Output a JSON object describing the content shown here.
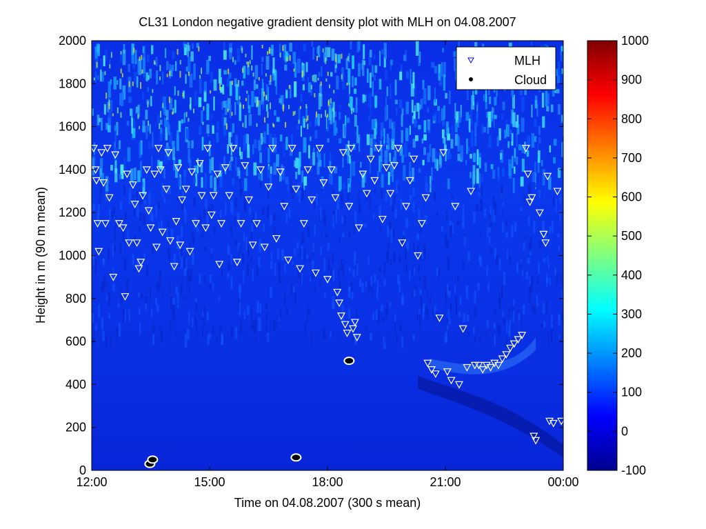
{
  "chart_data": {
    "type": "heatmap",
    "title": "CL31 London negative gradient density plot with MLH on 04.08.2007",
    "xlabel": "Time on 04.08.2007 (300 s mean)",
    "ylabel": "Height in m (90 m mean)",
    "x_ticks": [
      "12:00",
      "15:00",
      "18:00",
      "21:00",
      "00:00"
    ],
    "x_range_hours": [
      12,
      24
    ],
    "y_ticks": [
      0,
      200,
      400,
      600,
      800,
      1000,
      1200,
      1400,
      1600,
      1800,
      2000
    ],
    "ylim": [
      0,
      2000
    ],
    "colorbar": {
      "ticks": [
        -100,
        0,
        100,
        200,
        300,
        400,
        500,
        600,
        700,
        800,
        900,
        1000
      ],
      "range": [
        -100,
        1000
      ],
      "colormap": "jet"
    },
    "legend": {
      "position": "top-right",
      "entries": [
        {
          "label": "MLH",
          "marker": "triangle-down-open",
          "color": "#0000ff"
        },
        {
          "label": "Cloud",
          "marker": "dot",
          "color": "#000000"
        }
      ]
    },
    "series": [
      {
        "name": "MLH",
        "marker": "triangle-down-open",
        "points": [
          [
            12.05,
            1500
          ],
          [
            12.1,
            1400
          ],
          [
            12.12,
            1350
          ],
          [
            12.15,
            1150
          ],
          [
            12.18,
            1020
          ],
          [
            12.25,
            1480
          ],
          [
            12.3,
            1340
          ],
          [
            12.35,
            1150
          ],
          [
            12.4,
            1500
          ],
          [
            12.45,
            1270
          ],
          [
            12.55,
            900
          ],
          [
            12.6,
            1470
          ],
          [
            12.7,
            1150
          ],
          [
            12.8,
            1130
          ],
          [
            12.85,
            810
          ],
          [
            12.9,
            1380
          ],
          [
            12.95,
            1060
          ],
          [
            13.05,
            1330
          ],
          [
            13.1,
            1240
          ],
          [
            13.15,
            1060
          ],
          [
            13.2,
            940
          ],
          [
            13.25,
            970
          ],
          [
            13.3,
            1280
          ],
          [
            13.4,
            1400
          ],
          [
            13.45,
            1210
          ],
          [
            13.5,
            1130
          ],
          [
            13.6,
            1380
          ],
          [
            13.65,
            1040
          ],
          [
            13.7,
            1500
          ],
          [
            13.75,
            1400
          ],
          [
            13.8,
            1110
          ],
          [
            13.9,
            1310
          ],
          [
            13.95,
            1480
          ],
          [
            14.0,
            1070
          ],
          [
            14.1,
            950
          ],
          [
            14.15,
            1160
          ],
          [
            14.2,
            1410
          ],
          [
            14.25,
            1050
          ],
          [
            14.3,
            1260
          ],
          [
            14.4,
            1310
          ],
          [
            14.5,
            1020
          ],
          [
            14.55,
            1390
          ],
          [
            14.65,
            1150
          ],
          [
            14.75,
            1430
          ],
          [
            14.8,
            1280
          ],
          [
            14.9,
            1130
          ],
          [
            14.95,
            1500
          ],
          [
            15.05,
            1190
          ],
          [
            15.1,
            1280
          ],
          [
            15.2,
            1380
          ],
          [
            15.25,
            960
          ],
          [
            15.3,
            1150
          ],
          [
            15.4,
            1410
          ],
          [
            15.5,
            1280
          ],
          [
            15.6,
            1500
          ],
          [
            15.7,
            970
          ],
          [
            15.8,
            1150
          ],
          [
            15.9,
            1420
          ],
          [
            16.0,
            1260
          ],
          [
            16.1,
            1050
          ],
          [
            16.2,
            1150
          ],
          [
            16.3,
            1400
          ],
          [
            16.4,
            1040
          ],
          [
            16.5,
            1320
          ],
          [
            16.6,
            1500
          ],
          [
            16.7,
            1080
          ],
          [
            16.8,
            1390
          ],
          [
            16.9,
            1230
          ],
          [
            17.0,
            980
          ],
          [
            17.1,
            1500
          ],
          [
            17.2,
            1310
          ],
          [
            17.3,
            940
          ],
          [
            17.4,
            1150
          ],
          [
            17.5,
            1400
          ],
          [
            17.6,
            1260
          ],
          [
            17.7,
            920
          ],
          [
            17.8,
            1500
          ],
          [
            17.9,
            1340
          ],
          [
            18.0,
            890
          ],
          [
            18.1,
            1400
          ],
          [
            18.2,
            1270
          ],
          [
            18.25,
            830
          ],
          [
            18.3,
            780
          ],
          [
            18.35,
            720
          ],
          [
            18.4,
            1480
          ],
          [
            18.45,
            680
          ],
          [
            18.5,
            640
          ],
          [
            18.55,
            1230
          ],
          [
            18.6,
            1500
          ],
          [
            18.65,
            660
          ],
          [
            18.7,
            690
          ],
          [
            18.75,
            620
          ],
          [
            18.8,
            1130
          ],
          [
            18.9,
            1380
          ],
          [
            19.0,
            1290
          ],
          [
            19.1,
            1450
          ],
          [
            19.2,
            1350
          ],
          [
            19.3,
            1500
          ],
          [
            19.4,
            1170
          ],
          [
            19.5,
            1410
          ],
          [
            19.6,
            1290
          ],
          [
            19.7,
            1420
          ],
          [
            19.8,
            1500
          ],
          [
            19.9,
            1060
          ],
          [
            20.0,
            1230
          ],
          [
            20.1,
            1350
          ],
          [
            20.2,
            1450
          ],
          [
            20.3,
            1000
          ],
          [
            20.4,
            1150
          ],
          [
            20.5,
            1270
          ],
          [
            20.55,
            500
          ],
          [
            20.65,
            470
          ],
          [
            20.75,
            450
          ],
          [
            20.85,
            710
          ],
          [
            20.95,
            1480
          ],
          [
            21.05,
            460
          ],
          [
            21.15,
            420
          ],
          [
            21.25,
            1230
          ],
          [
            21.35,
            400
          ],
          [
            21.45,
            660
          ],
          [
            21.55,
            480
          ],
          [
            21.65,
            1300
          ],
          [
            21.75,
            490
          ],
          [
            21.85,
            490
          ],
          [
            21.95,
            470
          ],
          [
            22.05,
            490
          ],
          [
            22.15,
            480
          ],
          [
            22.25,
            500
          ],
          [
            22.35,
            490
          ],
          [
            22.45,
            520
          ],
          [
            22.55,
            540
          ],
          [
            22.65,
            570
          ],
          [
            22.75,
            590
          ],
          [
            22.85,
            610
          ],
          [
            22.95,
            630
          ],
          [
            23.05,
            1500
          ],
          [
            23.1,
            1380
          ],
          [
            23.15,
            1250
          ],
          [
            23.2,
            1270
          ],
          [
            23.25,
            160
          ],
          [
            23.3,
            140
          ],
          [
            23.4,
            1200
          ],
          [
            23.5,
            1100
          ],
          [
            23.55,
            1060
          ],
          [
            23.6,
            1370
          ],
          [
            23.65,
            230
          ],
          [
            23.75,
            220
          ],
          [
            23.85,
            1300
          ],
          [
            23.95,
            230
          ]
        ]
      },
      {
        "name": "Cloud",
        "marker": "dot",
        "points": [
          [
            13.48,
            30
          ],
          [
            13.55,
            50
          ],
          [
            17.2,
            60
          ],
          [
            18.55,
            510
          ]
        ]
      }
    ]
  }
}
